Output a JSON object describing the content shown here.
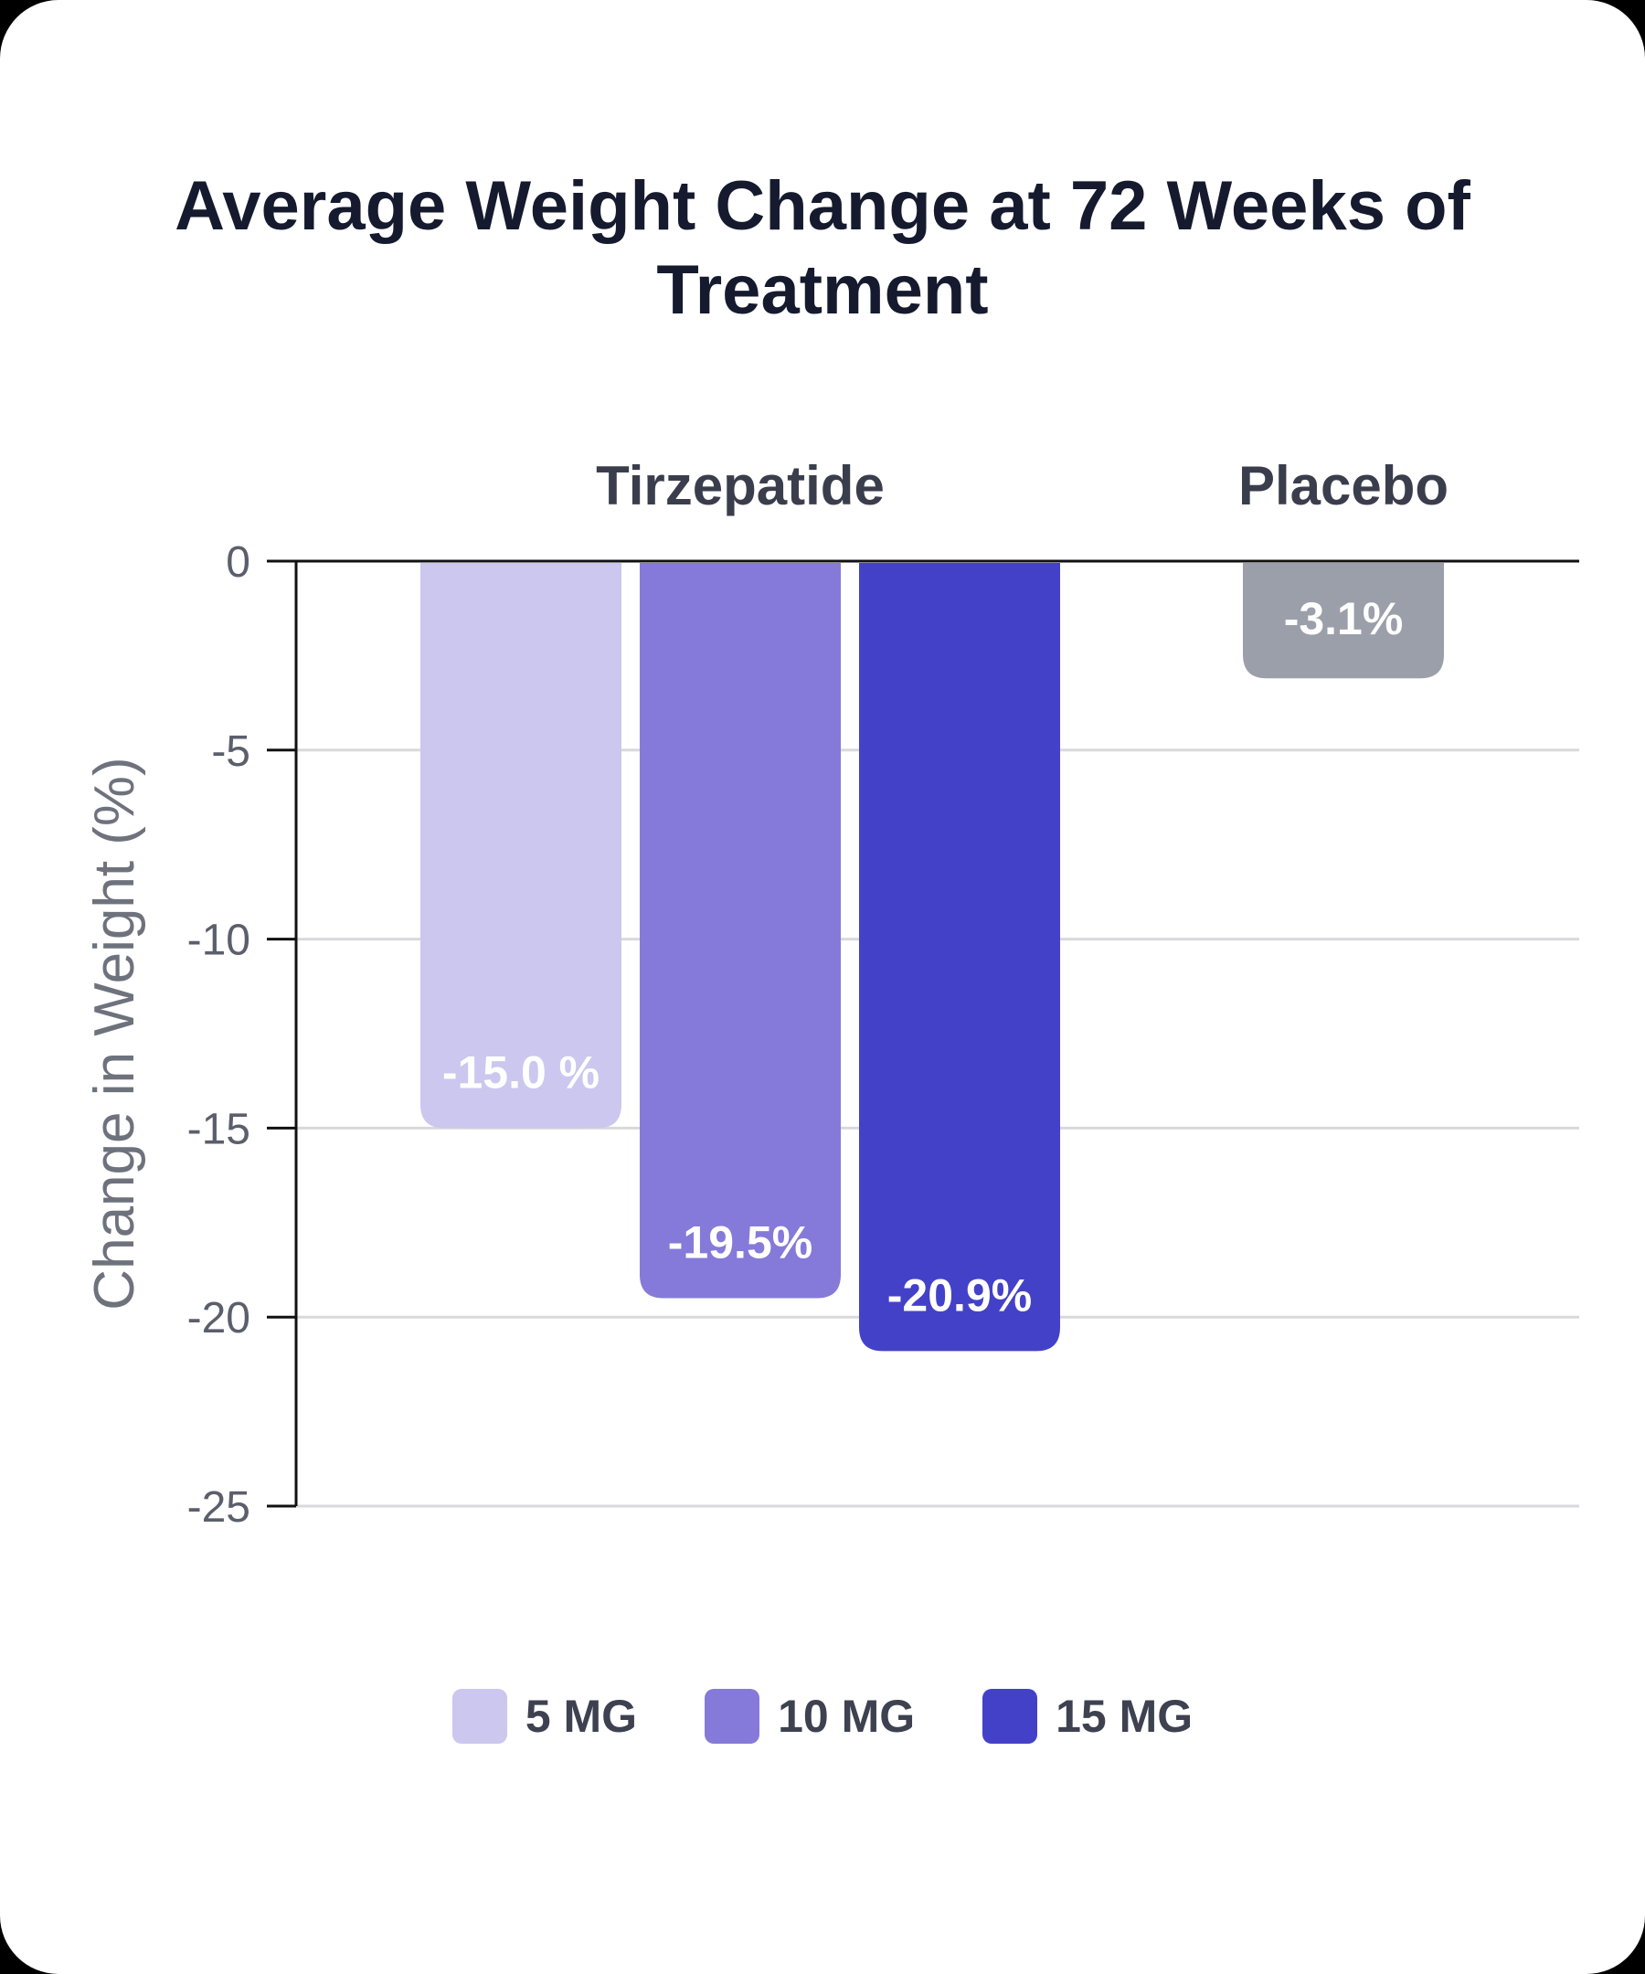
{
  "chart_data": {
    "type": "bar",
    "title": "Average Weight Change at 72 Weeks of Treatment",
    "ylabel": "Change in Weight (%)",
    "ylim": [
      -25,
      0
    ],
    "yticks": [
      0,
      -5,
      -10,
      -15,
      -20,
      -25
    ],
    "ytick_labels": [
      "0",
      "-5",
      "-10",
      "-15",
      "-20",
      "-25"
    ],
    "grid": true,
    "groups": [
      {
        "label": "Tirzepatide",
        "bars": [
          {
            "series": "5 MG",
            "value": -15.0,
            "label": "-15.0 %",
            "color": "#cbc7ee"
          },
          {
            "series": "10 MG",
            "value": -19.5,
            "label": "-19.5%",
            "color": "#857ad9"
          },
          {
            "series": "15 MG",
            "value": -20.9,
            "label": "-20.9%",
            "color": "#4441c9"
          }
        ]
      },
      {
        "label": "Placebo",
        "bars": [
          {
            "series": "Placebo",
            "value": -3.1,
            "label": "-3.1%",
            "color": "#9b9fa9"
          }
        ]
      }
    ],
    "legend": [
      {
        "label": "5 MG",
        "color": "#cbc7ee"
      },
      {
        "label": "10 MG",
        "color": "#857ad9"
      },
      {
        "label": "15 MG",
        "color": "#4441c9"
      }
    ],
    "legend_position": "bottom"
  }
}
